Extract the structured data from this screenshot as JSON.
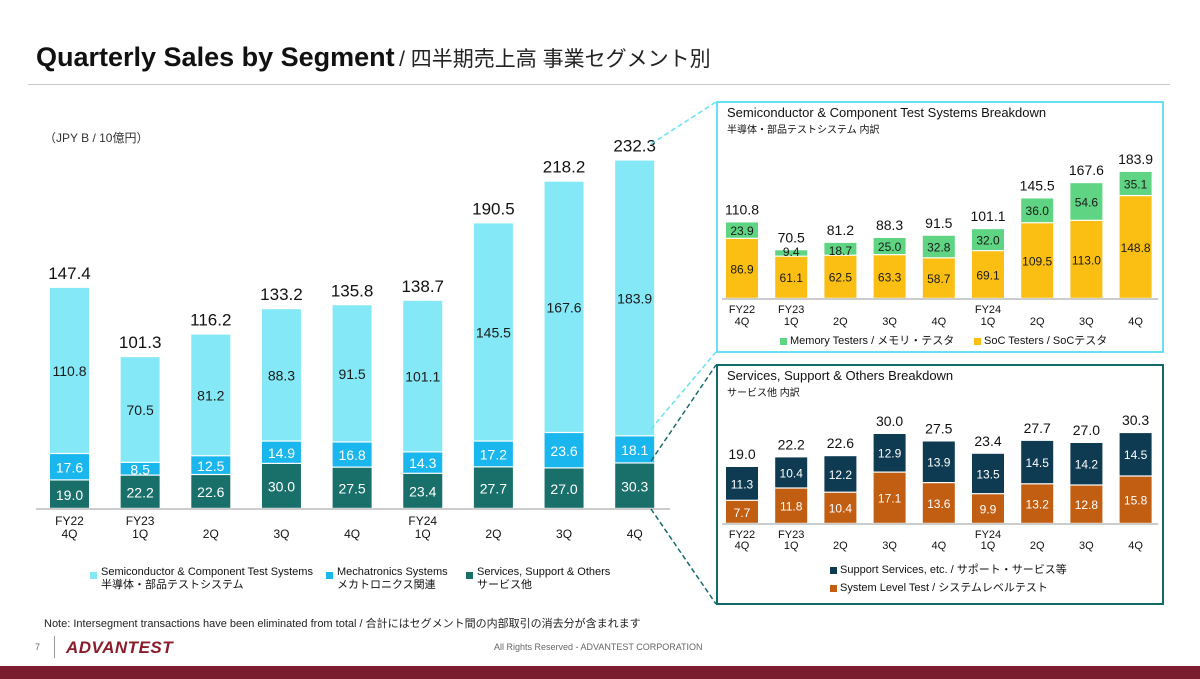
{
  "header": {
    "title_en": "Quarterly Sales by Segment",
    "title_jp": "/ 四半期売上高 事業セグメント別"
  },
  "unit_label": "（JPY B / 10億円）",
  "note": "Note: Intersegment transactions have been eliminated from total / 合計にはセグメント間の内部取引の消去分が含まれます",
  "footer": {
    "page_number": "7",
    "logo": "ADVANTEST",
    "copyright": "All Rights Reserved - ADVANTEST CORPORATION"
  },
  "colors": {
    "semiconductor": "#84e8f6",
    "mechatronics": "#1ab7ee",
    "services": "#19706a",
    "memory": "#5fd482",
    "soc": "#fbbf14",
    "support_services": "#0e3a52",
    "system_level_test": "#c25e12",
    "soc_frame": "#66e0f2",
    "svc_frame": "#136a6a",
    "brand": "#7a1d2f"
  },
  "chart_data": [
    {
      "type": "bar",
      "id": "main",
      "categories": [
        {
          "line1": "FY22",
          "line2": "4Q"
        },
        {
          "line1": "FY23",
          "line2": "1Q"
        },
        {
          "line1": "",
          "line2": "2Q"
        },
        {
          "line1": "",
          "line2": "3Q"
        },
        {
          "line1": "",
          "line2": "4Q"
        },
        {
          "line1": "FY24",
          "line2": "1Q"
        },
        {
          "line1": "",
          "line2": "2Q"
        },
        {
          "line1": "",
          "line2": "3Q"
        },
        {
          "line1": "",
          "line2": "4Q"
        }
      ],
      "series": [
        {
          "name": "Services, Support & Others",
          "name_jp": "サービス他",
          "values": [
            19.0,
            22.2,
            22.6,
            30.0,
            27.5,
            23.4,
            27.7,
            27.0,
            30.3
          ]
        },
        {
          "name": "Mechatronics Systems",
          "name_jp": "メカトロニクス関連",
          "values": [
            17.6,
            8.5,
            12.5,
            14.9,
            16.8,
            14.3,
            17.2,
            23.6,
            18.1
          ]
        },
        {
          "name": "Semiconductor & Component Test Systems",
          "name_jp": "半導体・部品テストシステム",
          "values": [
            110.8,
            70.5,
            81.2,
            88.3,
            91.5,
            101.1,
            145.5,
            167.6,
            183.9
          ]
        }
      ],
      "totals": [
        147.4,
        101.3,
        116.2,
        133.2,
        135.8,
        138.7,
        190.5,
        218.2,
        232.3
      ],
      "ylim": [
        0,
        250
      ],
      "stacked": true,
      "grid": false,
      "legend": "bottom"
    },
    {
      "type": "bar",
      "id": "soc_breakdown",
      "title": "Semiconductor & Component Test Systems Breakdown",
      "subtitle": "半導体・部品テストシステム 内訳",
      "categories": [
        {
          "line1": "FY22",
          "line2": "4Q"
        },
        {
          "line1": "FY23",
          "line2": "1Q"
        },
        {
          "line1": "",
          "line2": "2Q"
        },
        {
          "line1": "",
          "line2": "3Q"
        },
        {
          "line1": "",
          "line2": "4Q"
        },
        {
          "line1": "FY24",
          "line2": "1Q"
        },
        {
          "line1": "",
          "line2": "2Q"
        },
        {
          "line1": "",
          "line2": "3Q"
        },
        {
          "line1": "",
          "line2": "4Q"
        }
      ],
      "series": [
        {
          "name": "SoC Testers / SoCテスタ",
          "values": [
            86.9,
            61.1,
            62.5,
            63.3,
            58.7,
            69.1,
            109.5,
            113.0,
            148.8
          ]
        },
        {
          "name": "Memory Testers / メモリ・テスタ",
          "values": [
            23.9,
            9.4,
            18.7,
            25.0,
            32.8,
            32.0,
            36.0,
            54.6,
            35.1
          ]
        }
      ],
      "totals": [
        110.8,
        70.5,
        81.2,
        88.3,
        91.5,
        101.1,
        145.5,
        167.6,
        183.9
      ],
      "ylim": [
        0,
        190
      ],
      "stacked": true,
      "grid": false,
      "legend": "bottom"
    },
    {
      "type": "bar",
      "id": "services_breakdown",
      "title": "Services, Support & Others Breakdown",
      "subtitle": "サービス他 内訳",
      "categories": [
        {
          "line1": "FY22",
          "line2": "4Q"
        },
        {
          "line1": "FY23",
          "line2": "1Q"
        },
        {
          "line1": "",
          "line2": "2Q"
        },
        {
          "line1": "",
          "line2": "3Q"
        },
        {
          "line1": "",
          "line2": "4Q"
        },
        {
          "line1": "FY24",
          "line2": "1Q"
        },
        {
          "line1": "",
          "line2": "2Q"
        },
        {
          "line1": "",
          "line2": "3Q"
        },
        {
          "line1": "",
          "line2": "4Q"
        }
      ],
      "series": [
        {
          "name": "System Level Test / システムレベルテスト",
          "values": [
            7.7,
            11.8,
            10.4,
            17.1,
            13.6,
            9.9,
            13.2,
            12.8,
            15.8
          ]
        },
        {
          "name": "Support Services, etc. / サポート・サービス等",
          "values": [
            11.3,
            10.4,
            12.2,
            12.9,
            13.9,
            13.5,
            14.5,
            14.2,
            14.5
          ]
        }
      ],
      "totals": [
        19.0,
        22.2,
        22.6,
        30.0,
        27.5,
        23.4,
        27.7,
        27.0,
        30.3
      ],
      "ylim": [
        0,
        30.3
      ],
      "stacked": true,
      "grid": false,
      "legend": "bottom"
    }
  ]
}
